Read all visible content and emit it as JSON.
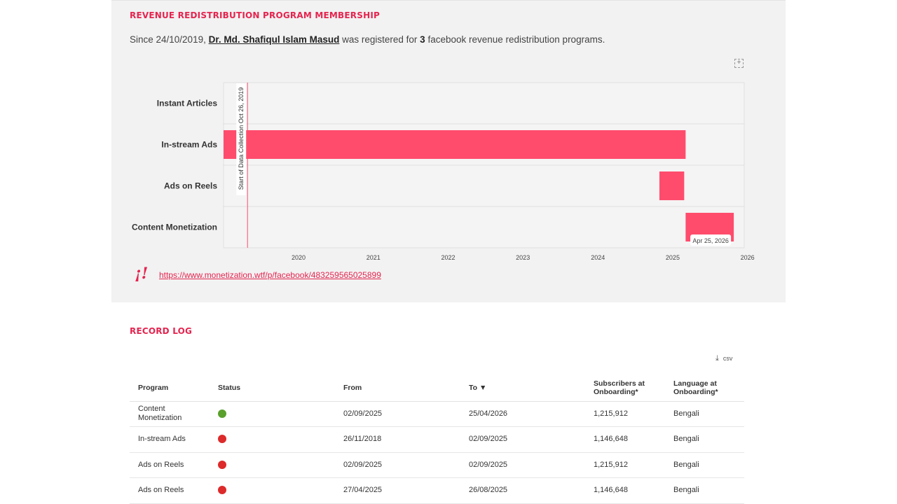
{
  "membership": {
    "heading": "REVENUE REDISTRIBUTION PROGRAM MEMBERSHIP",
    "intro_prefix": "Since 24/10/2019, ",
    "intro_name": "Dr. Md. Shafiqul Islam Masud",
    "intro_middle": " was registered for ",
    "intro_count": "3",
    "intro_suffix": " facebook revenue redistribution programs.",
    "link": "https://www.monetization.wtf/p/facebook/483259565025899",
    "logo_text": "¡!"
  },
  "chart_data": {
    "type": "timeline",
    "categories": [
      "Instant Articles",
      "In-stream Ads",
      "Ads on Reels",
      "Content Monetization"
    ],
    "x_ticks": [
      "2020",
      "2021",
      "2022",
      "2023",
      "2024",
      "2025",
      "2026"
    ],
    "x_range": [
      "2019-07-01",
      "2026-06-15"
    ],
    "marker": {
      "date": "2019-10-26",
      "label": "Start of Data Collection  Oct 26, 2019"
    },
    "bars": [
      {
        "category": "In-stream Ads",
        "start": "2018-11-26",
        "end": "2025-09-02"
      },
      {
        "category": "Ads on Reels",
        "start": "2025-04-27",
        "end": "2025-08-26"
      },
      {
        "category": "Content Monetization",
        "start": "2025-09-02",
        "end": "2026-04-25"
      }
    ],
    "end_label": "Apr 25, 2026",
    "bar_color": "#ff4c6d"
  },
  "record_log": {
    "heading": "RECORD LOG",
    "csv_label": "csv",
    "columns": [
      "Program",
      "Status",
      "From",
      "To ▼",
      "Subscribers at Onboarding*",
      "Language at Onboarding*"
    ],
    "rows": [
      {
        "program": "Content Monetization",
        "status": "active",
        "from": "02/09/2025",
        "to": "25/04/2026",
        "subscribers": "1,215,912",
        "language": "Bengali"
      },
      {
        "program": "In-stream Ads",
        "status": "inactive",
        "from": "26/11/2018",
        "to": "02/09/2025",
        "subscribers": "1,146,648",
        "language": "Bengali"
      },
      {
        "program": "Ads on Reels",
        "status": "inactive",
        "from": "02/09/2025",
        "to": "02/09/2025",
        "subscribers": "1,215,912",
        "language": "Bengali"
      },
      {
        "program": "Ads on Reels",
        "status": "inactive",
        "from": "27/04/2025",
        "to": "26/08/2025",
        "subscribers": "1,146,648",
        "language": "Bengali"
      }
    ],
    "status_colors": {
      "active": "#5aa02c",
      "inactive": "#dd2a2a"
    }
  }
}
